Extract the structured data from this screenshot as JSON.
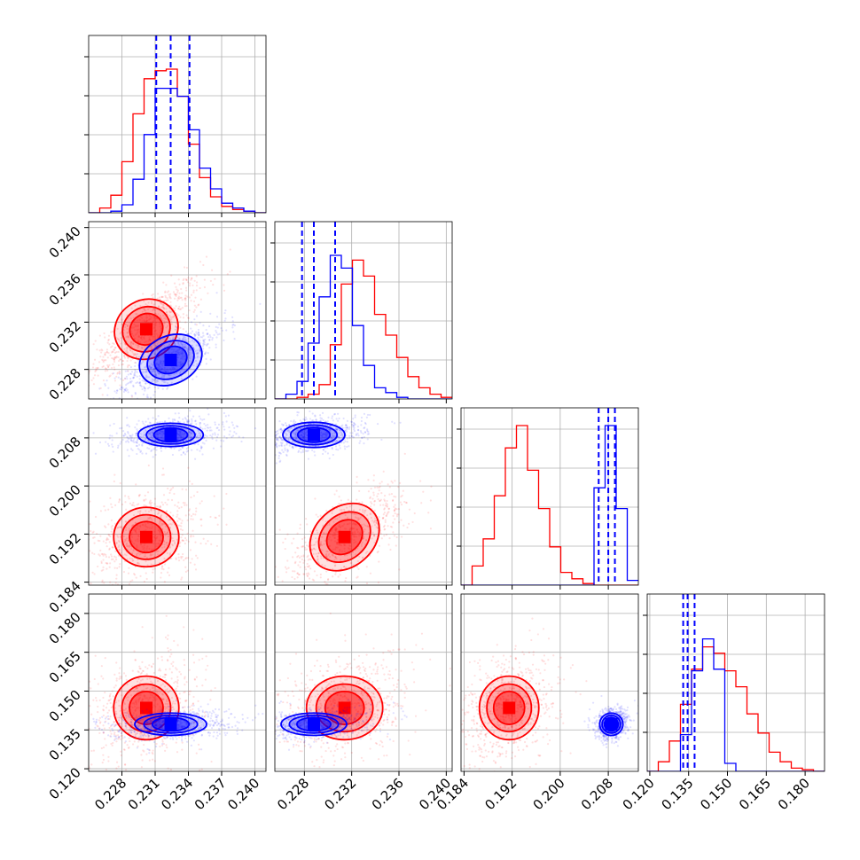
{
  "chart_data": {
    "type": "corner",
    "grid": true,
    "colors": {
      "red": "#ff0000",
      "blue": "#0000ff",
      "grid": "#b0b0b0"
    },
    "parameters": [
      {
        "range": [
          0.225,
          0.241
        ],
        "ticks": [
          "0.228",
          "0.231",
          "0.234",
          "0.237",
          "0.240"
        ]
      },
      {
        "range": [
          0.2255,
          0.2405
        ],
        "ticks": [
          "0.228",
          "0.232",
          "0.236",
          "0.240"
        ]
      },
      {
        "range": [
          0.1835,
          0.213
        ],
        "ticks": [
          "0.184",
          "0.192",
          "0.200",
          "0.208"
        ]
      },
      {
        "range": [
          0.119,
          0.1875
        ],
        "ticks": [
          "0.120",
          "0.135",
          "0.150",
          "0.165",
          "0.180"
        ]
      }
    ],
    "series": [
      {
        "color": "red",
        "centers": [
          0.2302,
          0.2314,
          0.1915,
          0.1435
        ],
        "marginals": [
          [
            0.0,
            0.03,
            0.11,
            0.32,
            0.62,
            0.84,
            0.89,
            0.9,
            0.73,
            0.43,
            0.22,
            0.1,
            0.04,
            0.02,
            0.01,
            0.0
          ],
          [
            0.0,
            0.0,
            0.01,
            0.03,
            0.09,
            0.34,
            0.72,
            0.87,
            0.77,
            0.53,
            0.4,
            0.26,
            0.14,
            0.07,
            0.03,
            0.01
          ],
          [
            0.0,
            0.12,
            0.29,
            0.56,
            0.86,
            1.0,
            0.72,
            0.48,
            0.24,
            0.08,
            0.04,
            0.01,
            0.0,
            0.0,
            0.0,
            0.0
          ],
          [
            0.0,
            0.06,
            0.19,
            0.42,
            0.64,
            0.78,
            0.74,
            0.63,
            0.53,
            0.36,
            0.24,
            0.12,
            0.06,
            0.02,
            0.01,
            0.0
          ]
        ],
        "contours": {
          "1-0": {
            "rx": 0.0018,
            "ry": 0.0015,
            "rho": 0.8
          },
          "2-0": {
            "rx": 0.0018,
            "ry": 0.003,
            "rho": 0.2
          },
          "2-1": {
            "rx": 0.002,
            "ry": 0.003,
            "rho": 0.7
          },
          "3-0": {
            "rx": 0.0018,
            "ry": 0.0075,
            "rho": 0.2
          },
          "3-1": {
            "rx": 0.002,
            "ry": 0.0075,
            "rho": 0.3
          },
          "3-2": {
            "rx": 0.003,
            "ry": 0.0075,
            "rho": 0.3
          }
        }
      },
      {
        "color": "blue",
        "centers": [
          0.2324,
          0.2288,
          0.2085,
          0.1372
        ],
        "quantiles": [
          [
            0.2311,
            0.2324,
            0.2341
          ],
          [
            0.2278,
            0.2288,
            0.2306
          ],
          [
            0.2064,
            0.208,
            0.2091
          ],
          [
            0.1329,
            0.1346,
            0.1373
          ]
        ],
        "marginals": [
          [
            0.0,
            0.0,
            0.01,
            0.05,
            0.21,
            0.49,
            0.78,
            0.78,
            0.73,
            0.52,
            0.28,
            0.15,
            0.06,
            0.03,
            0.01,
            0.0
          ],
          [
            0.0,
            0.03,
            0.11,
            0.35,
            0.64,
            0.9,
            0.82,
            0.46,
            0.21,
            0.07,
            0.04,
            0.01,
            0.0,
            0.0,
            0.0,
            0.0
          ],
          [
            0.0,
            0.0,
            0.0,
            0.0,
            0.0,
            0.0,
            0.0,
            0.0,
            0.0,
            0.0,
            0.0,
            0.0,
            0.61,
            1.0,
            0.48,
            0.03
          ],
          [
            0.0,
            0.0,
            0.0,
            0.23,
            0.63,
            0.83,
            0.64,
            0.05,
            0.0,
            0.0,
            0.0,
            0.0,
            0.0,
            0.0,
            0.0,
            0.0
          ]
        ],
        "contours": {
          "1-0": {
            "rx": 0.0018,
            "ry": 0.0012,
            "rho": 0.8
          },
          "2-0": {
            "rx": 0.0018,
            "ry": 0.001,
            "rho": 0.2
          },
          "2-1": {
            "rx": 0.0016,
            "ry": 0.0011,
            "rho": 0.3
          },
          "3-0": {
            "rx": 0.002,
            "ry": 0.0022,
            "rho": 0.2
          },
          "3-1": {
            "rx": 0.0017,
            "ry": 0.0022,
            "rho": 0.3
          },
          "3-2": {
            "rx": 0.001,
            "ry": 0.0022,
            "rho": 0.2
          }
        }
      }
    ]
  }
}
